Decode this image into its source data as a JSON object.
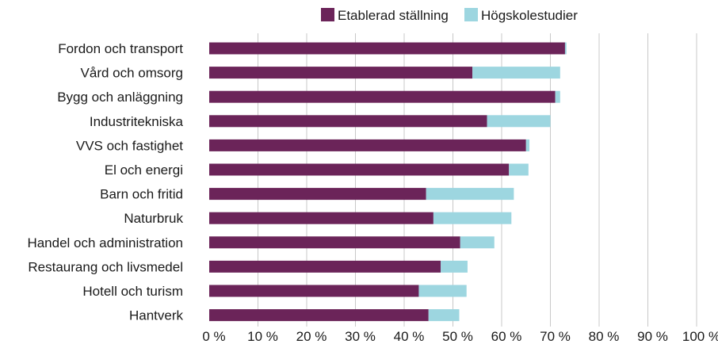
{
  "chart_data": {
    "type": "bar",
    "orientation": "horizontal",
    "stacked": true,
    "categories": [
      "Fordon och transport",
      "Vård och omsorg",
      "Bygg och anläggning",
      "Industritekniska",
      "VVS och fastighet",
      "El och energi",
      "Barn och fritid",
      "Naturbruk",
      "Handel och administration",
      "Restaurang och livsmedel",
      "Hotell och turism",
      "Hantverk"
    ],
    "series": [
      {
        "name": "Etablerad ställning",
        "color": "#6b2459",
        "values": [
          73,
          54,
          71,
          57,
          65,
          61.5,
          44.5,
          46,
          51.5,
          47.5,
          43,
          45
        ]
      },
      {
        "name": "Högskolestudier",
        "color": "#9dd6e0",
        "values": [
          0.3,
          18,
          1,
          13,
          0.7,
          4,
          18,
          16,
          7,
          5.5,
          9.8,
          6.3
        ]
      }
    ],
    "x_ticks": [
      "0 %",
      "10 %",
      "20 %",
      "30 %",
      "40 %",
      "50 %",
      "60 %",
      "70 %",
      "80 %",
      "90 %",
      "100 %"
    ],
    "xlim": [
      0,
      100
    ],
    "grid": true,
    "legend_position": "top"
  }
}
